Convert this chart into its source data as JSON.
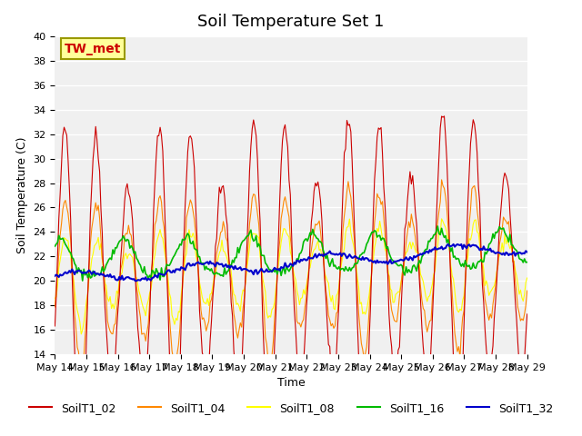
{
  "title": "Soil Temperature Set 1",
  "xlabel": "Time",
  "ylabel": "Soil Temperature (C)",
  "ylim": [
    14,
    40
  ],
  "yticks": [
    14,
    16,
    18,
    20,
    22,
    24,
    26,
    28,
    30,
    32,
    34,
    36,
    38,
    40
  ],
  "xtick_labels": [
    "May 14",
    "May 15",
    "May 16",
    "May 17",
    "May 18",
    "May 19",
    "May 20",
    "May 21",
    "May 22",
    "May 23",
    "May 24",
    "May 25",
    "May 26",
    "May 27",
    "May 28",
    "May 29"
  ],
  "annotation_text": "TW_met",
  "annotation_bg": "#ffff99",
  "annotation_border": "#999900",
  "series_colors": {
    "SoilT1_02": "#cc0000",
    "SoilT1_04": "#ff8800",
    "SoilT1_08": "#ffff00",
    "SoilT1_16": "#00bb00",
    "SoilT1_32": "#0000cc"
  },
  "title_fontsize": 13,
  "axis_label_fontsize": 9,
  "tick_fontsize": 8,
  "legend_fontsize": 9
}
